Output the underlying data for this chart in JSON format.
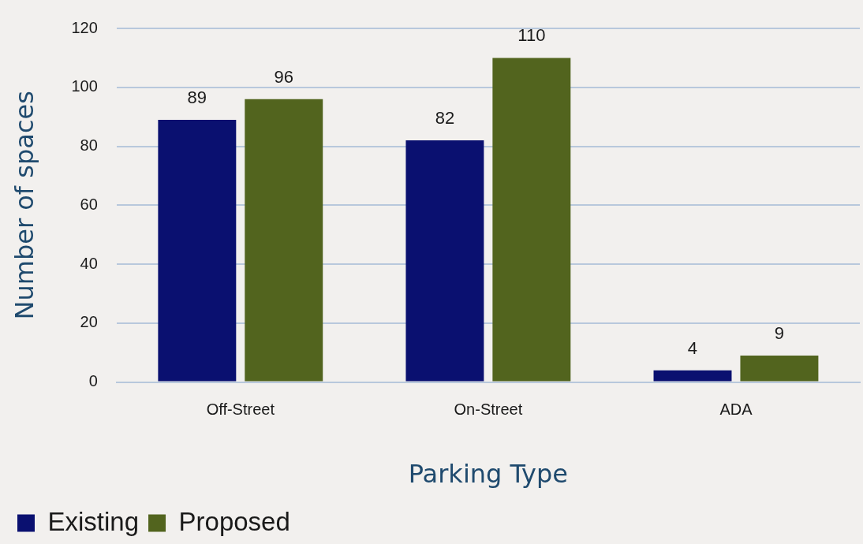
{
  "chart_data": {
    "type": "bar",
    "xlabel": "Parking Type",
    "ylabel": "Number of spaces",
    "categories": [
      "Off-Street",
      "On-Street",
      "ADA"
    ],
    "series": [
      {
        "name": "Existing",
        "color": "#0a1070",
        "values": [
          89,
          82,
          4
        ]
      },
      {
        "name": "Proposed",
        "color": "#52641e",
        "values": [
          96,
          110,
          9
        ]
      }
    ],
    "ylim": [
      0,
      120
    ],
    "yticks": [
      0,
      20,
      40,
      60,
      80,
      100,
      120
    ],
    "grid": "y",
    "legend": "bottom left",
    "data_labels": true
  }
}
